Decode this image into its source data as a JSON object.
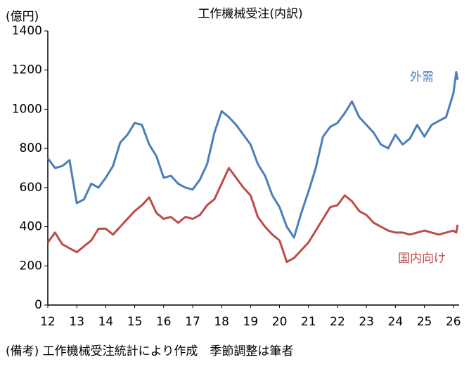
{
  "chart_data": {
    "type": "line",
    "title": "工作機械受注(内訳)",
    "y_label": "(億円)",
    "note": "(備考) 工作機械受注統計により作成　季節調整は筆者",
    "x": [
      12.0,
      12.25,
      12.5,
      12.75,
      13.0,
      13.25,
      13.5,
      13.75,
      14.0,
      14.25,
      14.5,
      14.75,
      15.0,
      15.25,
      15.5,
      15.75,
      16.0,
      16.25,
      16.5,
      16.75,
      17.0,
      17.25,
      17.5,
      17.75,
      18.0,
      18.25,
      18.5,
      18.75,
      19.0,
      19.25,
      19.5,
      19.75,
      20.0,
      20.25,
      20.5,
      20.75,
      21.0,
      21.25,
      21.5,
      21.75,
      22.0,
      22.25,
      22.5,
      22.75,
      23.0,
      23.25,
      23.5,
      23.75,
      24.0,
      24.25,
      24.5,
      24.75,
      25.0,
      25.25,
      25.5,
      25.75,
      26.0,
      26.1,
      26.15
    ],
    "series": [
      {
        "name": "外需",
        "color": "#4a7ebb",
        "values": [
          750,
          700,
          710,
          740,
          520,
          540,
          620,
          600,
          650,
          710,
          830,
          870,
          930,
          920,
          820,
          760,
          650,
          660,
          620,
          600,
          590,
          640,
          720,
          880,
          990,
          960,
          920,
          870,
          820,
          720,
          660,
          560,
          500,
          400,
          345,
          470,
          580,
          700,
          860,
          910,
          930,
          980,
          1040,
          960,
          920,
          880,
          820,
          800,
          870,
          820,
          850,
          920,
          860,
          920,
          940,
          960,
          1080,
          1190,
          1150
        ]
      },
      {
        "name": "国内向け",
        "color": "#be4b48",
        "values": [
          320,
          370,
          310,
          290,
          270,
          300,
          330,
          390,
          390,
          360,
          400,
          440,
          480,
          510,
          550,
          470,
          440,
          450,
          420,
          450,
          440,
          460,
          510,
          540,
          620,
          700,
          650,
          600,
          560,
          450,
          400,
          360,
          330,
          220,
          240,
          280,
          320,
          380,
          440,
          500,
          510,
          560,
          530,
          480,
          460,
          420,
          400,
          380,
          370,
          370,
          360,
          370,
          380,
          370,
          360,
          370,
          380,
          370,
          410
        ]
      }
    ],
    "xlim": [
      12,
      26.2
    ],
    "xticks": [
      12,
      13,
      14,
      15,
      16,
      17,
      18,
      19,
      20,
      21,
      22,
      23,
      24,
      25,
      26
    ],
    "ylim": [
      0,
      1400
    ],
    "yticks": [
      0,
      200,
      400,
      600,
      800,
      1000,
      1200,
      1400
    ],
    "grid": false
  }
}
